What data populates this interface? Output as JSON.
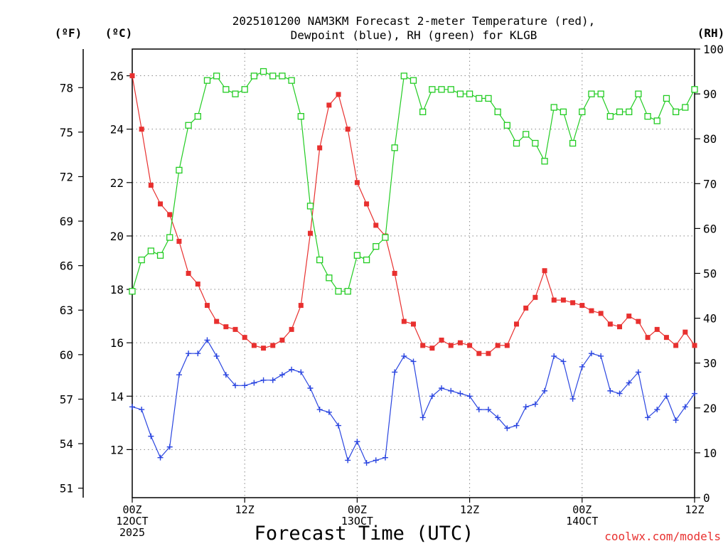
{
  "page": {
    "title_line1": "2025101200 NAM3KM Forecast 2-meter Temperature (red),",
    "title_line2": "Dewpoint (blue), RH (green) for KLGB",
    "credit": "coolwx.com/models"
  },
  "chart_data": {
    "type": "line",
    "title": "2025101200 NAM3KM Forecast 2-meter Temperature (red), Dewpoint (blue), RH (green) for KLGB",
    "xlabel": "Forecast Time (UTC)",
    "x_unit": "forecast hour",
    "xlim": [
      0,
      60
    ],
    "x_ticks": [
      {
        "hour": 0,
        "lines": [
          "00Z",
          "12OCT",
          "2025"
        ]
      },
      {
        "hour": 12,
        "lines": [
          "12Z"
        ]
      },
      {
        "hour": 24,
        "lines": [
          "00Z",
          "13OCT"
        ]
      },
      {
        "hour": 36,
        "lines": [
          "12Z"
        ]
      },
      {
        "hour": 48,
        "lines": [
          "00Z",
          "14OCT"
        ]
      },
      {
        "hour": 60,
        "lines": [
          "12Z"
        ]
      }
    ],
    "axes": {
      "celsius": {
        "label": "(ºC)",
        "range": [
          10.2,
          27.0
        ],
        "ticks": [
          12,
          14,
          16,
          18,
          20,
          22,
          24,
          26
        ]
      },
      "fahrenheit": {
        "label": "(ºF)",
        "range": [
          50.36,
          80.6
        ],
        "ticks": [
          51,
          54,
          57,
          60,
          63,
          66,
          69,
          72,
          75,
          78
        ]
      },
      "rh": {
        "label": "(RH)",
        "range": [
          0,
          100
        ],
        "ticks": [
          0,
          10,
          20,
          30,
          40,
          50,
          60,
          70,
          80,
          90,
          100
        ]
      }
    },
    "grid": true,
    "series": [
      {
        "name": "2-meter Temperature",
        "color": "#e8302f",
        "marker": "filled-square",
        "units": "C",
        "x": [
          0,
          1,
          2,
          3,
          4,
          5,
          6,
          7,
          8,
          9,
          10,
          11,
          12,
          13,
          14,
          15,
          16,
          17,
          18,
          19,
          20,
          21,
          22,
          23,
          24,
          25,
          26,
          27,
          28,
          29,
          30,
          31,
          32,
          33,
          34,
          35,
          36,
          37,
          38,
          39,
          40,
          41,
          42,
          43,
          44,
          45,
          46,
          47,
          48,
          49,
          50,
          51,
          52,
          53,
          54,
          55,
          56,
          57,
          58,
          59,
          60
        ],
        "values": [
          26.0,
          24.0,
          21.9,
          21.2,
          20.8,
          19.8,
          18.6,
          18.2,
          17.4,
          16.8,
          16.6,
          16.5,
          16.2,
          15.9,
          15.8,
          15.9,
          16.1,
          16.5,
          17.4,
          20.1,
          23.3,
          24.9,
          25.3,
          24.0,
          22.0,
          21.2,
          20.4,
          20.0,
          18.6,
          16.8,
          16.7,
          15.9,
          15.8,
          16.1,
          15.9,
          16.0,
          15.9,
          15.6,
          15.6,
          15.9,
          15.9,
          16.7,
          17.3,
          17.7,
          18.7,
          17.6,
          17.6,
          17.5,
          17.4,
          17.2,
          17.1,
          16.7,
          16.6,
          17.0,
          16.8,
          16.2,
          16.5,
          16.2,
          15.9,
          16.4,
          15.9
        ]
      },
      {
        "name": "Dewpoint",
        "color": "#2a45e0",
        "marker": "plus",
        "units": "C",
        "x": [
          0,
          1,
          2,
          3,
          4,
          5,
          6,
          7,
          8,
          9,
          10,
          11,
          12,
          13,
          14,
          15,
          16,
          17,
          18,
          19,
          20,
          21,
          22,
          23,
          24,
          25,
          26,
          27,
          28,
          29,
          30,
          31,
          32,
          33,
          34,
          35,
          36,
          37,
          38,
          39,
          40,
          41,
          42,
          43,
          44,
          45,
          46,
          47,
          48,
          49,
          50,
          51,
          52,
          53,
          54,
          55,
          56,
          57,
          58,
          59,
          60
        ],
        "values": [
          13.6,
          13.5,
          12.5,
          11.7,
          12.1,
          14.8,
          15.6,
          15.6,
          16.1,
          15.5,
          14.8,
          14.4,
          14.4,
          14.5,
          14.6,
          14.6,
          14.8,
          15.0,
          14.9,
          14.3,
          13.5,
          13.4,
          12.9,
          11.6,
          12.3,
          11.5,
          11.6,
          11.7,
          14.9,
          15.5,
          15.3,
          13.2,
          14.0,
          14.3,
          14.2,
          14.1,
          14.0,
          13.5,
          13.5,
          13.2,
          12.8,
          12.9,
          13.6,
          13.7,
          14.2,
          15.5,
          15.3,
          13.9,
          15.1,
          15.6,
          15.5,
          14.2,
          14.1,
          14.5,
          14.9,
          13.2,
          13.5,
          14.0,
          13.1,
          13.6,
          14.1
        ]
      },
      {
        "name": "RH",
        "color": "#22cc22",
        "marker": "open-square",
        "units": "%",
        "x": [
          0,
          1,
          2,
          3,
          4,
          5,
          6,
          7,
          8,
          9,
          10,
          11,
          12,
          13,
          14,
          15,
          16,
          17,
          18,
          19,
          20,
          21,
          22,
          23,
          24,
          25,
          26,
          27,
          28,
          29,
          30,
          31,
          32,
          33,
          34,
          35,
          36,
          37,
          38,
          39,
          40,
          41,
          42,
          43,
          44,
          45,
          46,
          47,
          48,
          49,
          50,
          51,
          52,
          53,
          54,
          55,
          56,
          57,
          58,
          59,
          60
        ],
        "values": [
          46,
          53,
          55,
          54,
          58,
          73,
          83,
          85,
          93,
          94,
          91,
          90,
          91,
          94,
          95,
          94,
          94,
          93,
          85,
          65,
          53,
          49,
          46,
          46,
          54,
          53,
          56,
          58,
          78,
          94,
          93,
          86,
          91,
          91,
          91,
          90,
          90,
          89,
          89,
          86,
          83,
          79,
          81,
          79,
          75,
          87,
          86,
          79,
          86,
          90,
          90,
          85,
          86,
          86,
          90,
          85,
          84,
          89,
          86,
          87,
          91
        ]
      }
    ]
  }
}
